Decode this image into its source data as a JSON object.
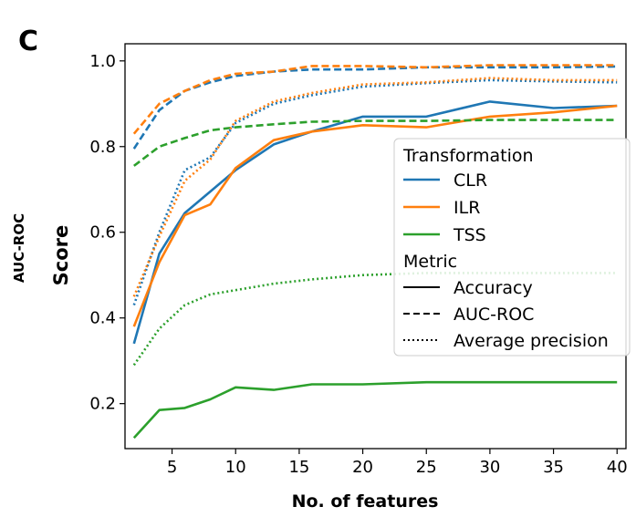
{
  "panel_label": "C",
  "side_label": "AUC-ROC",
  "colors": {
    "CLR": "#1f77b4",
    "ILR": "#ff7f0e",
    "TSS": "#2ca02c"
  },
  "chart_data": {
    "type": "line",
    "xlabel": "No. of features",
    "ylabel": "Score",
    "xlim": [
      1.3,
      40.7
    ],
    "ylim": [
      0.095,
      1.04
    ],
    "xticks": [
      5,
      10,
      15,
      20,
      25,
      30,
      35,
      40
    ],
    "yticks": [
      0.2,
      0.4,
      0.6,
      0.8,
      1.0
    ],
    "ytick_labels": [
      "0.2",
      "0.4",
      "0.6",
      "0.8",
      "1.0"
    ],
    "grid": false,
    "legend": {
      "placement": "right",
      "transformation_title": "Transformation",
      "transformations": [
        "CLR",
        "ILR",
        "TSS"
      ],
      "metric_title": "Metric",
      "metrics": [
        {
          "name": "Accuracy",
          "style": "solid"
        },
        {
          "name": "AUC-ROC",
          "style": "dashed"
        },
        {
          "name": "Average precision",
          "style": "dotted"
        }
      ]
    },
    "x": [
      2,
      4,
      6,
      8,
      10,
      13,
      16,
      20,
      25,
      30,
      35,
      40
    ],
    "series": [
      {
        "transformation": "CLR",
        "metric": "Accuracy",
        "values": [
          0.34,
          0.55,
          0.645,
          0.695,
          0.745,
          0.805,
          0.835,
          0.87,
          0.87,
          0.905,
          0.89,
          0.895
        ]
      },
      {
        "transformation": "ILR",
        "metric": "Accuracy",
        "values": [
          0.38,
          0.53,
          0.64,
          0.665,
          0.75,
          0.815,
          0.835,
          0.85,
          0.845,
          0.87,
          0.88,
          0.895
        ]
      },
      {
        "transformation": "TSS",
        "metric": "Accuracy",
        "values": [
          0.12,
          0.185,
          0.19,
          0.21,
          0.238,
          0.232,
          0.245,
          0.245,
          0.25,
          0.25,
          0.25,
          0.25
        ]
      },
      {
        "transformation": "CLR",
        "metric": "AUC-ROC",
        "values": [
          0.795,
          0.885,
          0.93,
          0.95,
          0.965,
          0.975,
          0.98,
          0.98,
          0.985,
          0.985,
          0.985,
          0.987
        ]
      },
      {
        "transformation": "ILR",
        "metric": "AUC-ROC",
        "values": [
          0.83,
          0.9,
          0.93,
          0.955,
          0.97,
          0.975,
          0.988,
          0.988,
          0.985,
          0.99,
          0.99,
          0.99
        ]
      },
      {
        "transformation": "TSS",
        "metric": "AUC-ROC",
        "values": [
          0.755,
          0.8,
          0.82,
          0.838,
          0.845,
          0.852,
          0.858,
          0.86,
          0.86,
          0.862,
          0.862,
          0.862
        ]
      },
      {
        "transformation": "CLR",
        "metric": "Average precision",
        "values": [
          0.43,
          0.6,
          0.745,
          0.775,
          0.855,
          0.9,
          0.92,
          0.94,
          0.948,
          0.955,
          0.952,
          0.95
        ]
      },
      {
        "transformation": "ILR",
        "metric": "Average precision",
        "values": [
          0.45,
          0.59,
          0.72,
          0.77,
          0.86,
          0.905,
          0.925,
          0.945,
          0.95,
          0.96,
          0.955,
          0.955
        ]
      },
      {
        "transformation": "TSS",
        "metric": "Average precision",
        "values": [
          0.29,
          0.375,
          0.43,
          0.455,
          0.465,
          0.48,
          0.49,
          0.5,
          0.505,
          0.505,
          0.505,
          0.505
        ]
      }
    ]
  }
}
